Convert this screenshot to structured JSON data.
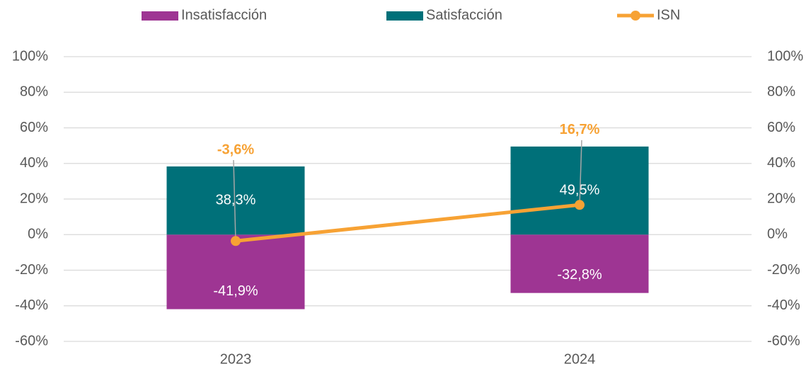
{
  "chart_data": {
    "type": "bar_line",
    "categories": [
      "2023",
      "2024"
    ],
    "series": [
      {
        "name": "Insatisfacción",
        "type": "bar",
        "color": "#9e3593",
        "values": [
          -41.9,
          -32.8
        ],
        "value_labels": [
          "-41,9%",
          "-32,8%"
        ]
      },
      {
        "name": "Satisfacción",
        "type": "bar",
        "color": "#007079",
        "values": [
          38.3,
          49.5
        ],
        "value_labels": [
          "38,3%",
          "49,5%"
        ]
      },
      {
        "name": "ISN",
        "type": "line",
        "color": "#f7a234",
        "values": [
          -3.6,
          16.7
        ],
        "value_labels": [
          "-3,6%",
          "16,7%"
        ]
      }
    ],
    "stacked": true,
    "ylim": [
      -60,
      100
    ],
    "yticks": [
      {
        "value": -60,
        "label": "-60%"
      },
      {
        "value": -40,
        "label": "-40%"
      },
      {
        "value": -20,
        "label": "-20%"
      },
      {
        "value": 0,
        "label": "0%"
      },
      {
        "value": 20,
        "label": "20%"
      },
      {
        "value": 40,
        "label": "40%"
      },
      {
        "value": 60,
        "label": "60%"
      },
      {
        "value": 80,
        "label": "80%"
      },
      {
        "value": 100,
        "label": "100%"
      }
    ],
    "y2lim": [
      -60,
      100
    ],
    "y2ticks": [
      {
        "value": -60,
        "label": "-60%"
      },
      {
        "value": -40,
        "label": "-40%"
      },
      {
        "value": -20,
        "label": "-20%"
      },
      {
        "value": 0,
        "label": "0%"
      },
      {
        "value": 20,
        "label": "20%"
      },
      {
        "value": 40,
        "label": "40%"
      },
      {
        "value": 60,
        "label": "60%"
      },
      {
        "value": 80,
        "label": "80%"
      },
      {
        "value": 100,
        "label": "100%"
      }
    ],
    "grid": true,
    "legend": "top"
  }
}
